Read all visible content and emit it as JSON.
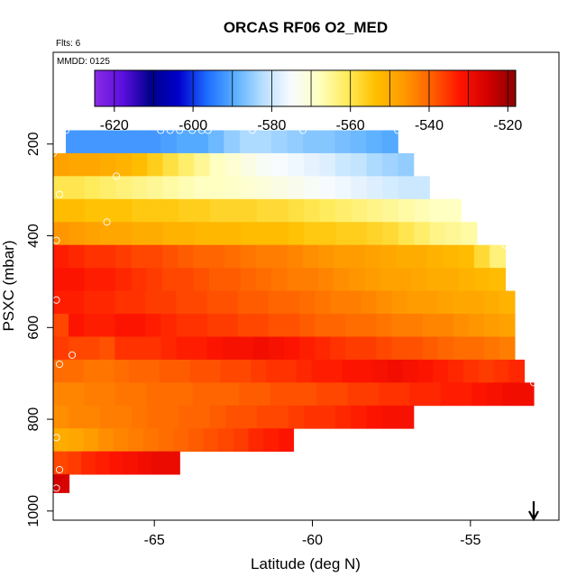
{
  "chart_data": {
    "type": "heatmap",
    "title": "ORCAS RF06 O2_MED",
    "subtitle": "Flts: 6",
    "annotation": "MMDD: 0125",
    "xlabel": "Latitude (deg N)",
    "ylabel": "PSXC (mbar)",
    "xlim": [
      -68.2,
      -52.2
    ],
    "ylim": [
      1020,
      0
    ],
    "x_ticks": [
      -65,
      -60,
      -55
    ],
    "x_tick_labels": [
      "-65",
      "-60",
      "-55"
    ],
    "y_ticks": [
      200,
      400,
      600,
      800,
      1000
    ],
    "y_tick_labels": [
      "200",
      "400",
      "600",
      "800",
      "1000"
    ],
    "colorbar": {
      "min": -625,
      "max": -518,
      "ticks": [
        -620,
        -600,
        -580,
        -560,
        -540,
        -520
      ],
      "tick_labels": [
        "-620",
        "-600",
        "-580",
        "-560",
        "-540",
        "-520"
      ],
      "colors": [
        "#8a2be2",
        "#5b0fe0",
        "#00008b",
        "#0000cd",
        "#1e6cff",
        "#5ab0ff",
        "#b8dfff",
        "#f7fbff",
        "#ffffc0",
        "#ffeb5a",
        "#ffc000",
        "#ff9a00",
        "#ff6000",
        "#ff1500",
        "#d30000",
        "#8b0000"
      ]
    },
    "bin_width_deg": 0.5,
    "rows": [
      {
        "p0": 170,
        "p1": 220,
        "x0": -67.8,
        "x1": -57.3,
        "values": [
          -592,
          -592,
          -592,
          -592,
          -592,
          -592,
          -591,
          -590,
          -590,
          -588,
          -585,
          -583,
          -583,
          -584,
          -585,
          -586,
          -586,
          -587,
          -588,
          -589,
          -590
        ]
      },
      {
        "p0": 220,
        "p1": 270,
        "x0": -68.2,
        "x1": -56.8,
        "values": [
          -548,
          -549,
          -549,
          -550,
          -551,
          -553,
          -556,
          -559,
          -562,
          -565,
          -568,
          -570,
          -572,
          -574,
          -575,
          -576,
          -577,
          -578,
          -580,
          -581,
          -583,
          -584,
          -585
        ]
      },
      {
        "p0": 270,
        "p1": 320,
        "x0": -68.2,
        "x1": -56.3,
        "values": [
          -560,
          -560,
          -561,
          -562,
          -563,
          -564,
          -565,
          -566,
          -567,
          -568,
          -568,
          -569,
          -570,
          -571,
          -572,
          -573,
          -574,
          -575,
          -576,
          -577,
          -578,
          -579,
          -580,
          -580
        ]
      },
      {
        "p0": 320,
        "p1": 370,
        "x0": -68.2,
        "x1": -55.3,
        "values": [
          -553,
          -553,
          -554,
          -554,
          -554,
          -555,
          -555,
          -555,
          -556,
          -556,
          -557,
          -557,
          -557,
          -558,
          -558,
          -559,
          -560,
          -561,
          -562,
          -563,
          -564,
          -565,
          -566,
          -567,
          -568,
          -568
        ]
      },
      {
        "p0": 370,
        "p1": 420,
        "x0": -68.2,
        "x1": -54.8,
        "values": [
          -546,
          -547,
          -548,
          -549,
          -549,
          -550,
          -550,
          -551,
          -551,
          -552,
          -552,
          -552,
          -553,
          -553,
          -553,
          -554,
          -555,
          -555,
          -556,
          -556,
          -557,
          -558,
          -560,
          -562,
          -564,
          -565,
          -566
        ]
      },
      {
        "p0": 420,
        "p1": 470,
        "x0": -68.2,
        "x1": -53.9,
        "values": [
          -533,
          -534,
          -535,
          -535,
          -536,
          -537,
          -537,
          -538,
          -539,
          -540,
          -540,
          -541,
          -542,
          -543,
          -543,
          -544,
          -545,
          -546,
          -547,
          -547,
          -548,
          -549,
          -550,
          -550,
          -551,
          -552,
          -553,
          -558,
          -563
        ]
      },
      {
        "p0": 470,
        "p1": 520,
        "x0": -68.2,
        "x1": -53.9,
        "values": [
          -532,
          -532,
          -533,
          -533,
          -534,
          -535,
          -536,
          -537,
          -537,
          -538,
          -539,
          -539,
          -540,
          -541,
          -542,
          -543,
          -543,
          -544,
          -545,
          -546,
          -547,
          -548,
          -548,
          -549,
          -550,
          -550,
          -551,
          -552,
          -553
        ]
      },
      {
        "p0": 520,
        "p1": 570,
        "x0": -68.2,
        "x1": -53.6,
        "values": [
          -533,
          -533,
          -534,
          -534,
          -535,
          -535,
          -536,
          -536,
          -537,
          -537,
          -538,
          -538,
          -539,
          -539,
          -540,
          -540,
          -541,
          -542,
          -543,
          -543,
          -544,
          -545,
          -546,
          -547,
          -547,
          -548,
          -549,
          -549,
          -550,
          -551
        ]
      },
      {
        "p0": 570,
        "p1": 620,
        "x0": -68.2,
        "x1": -53.6,
        "values": [
          -537,
          -532,
          -533,
          -533,
          -532,
          -532,
          -533,
          -534,
          -535,
          -535,
          -536,
          -536,
          -537,
          -537,
          -538,
          -538,
          -539,
          -540,
          -540,
          -541,
          -541,
          -542,
          -543,
          -543,
          -544,
          -544,
          -545,
          -546,
          -547,
          -548
        ]
      },
      {
        "p0": 620,
        "p1": 670,
        "x0": -68.2,
        "x1": -53.6,
        "values": [
          -536,
          -537,
          -537,
          -538,
          -535,
          -535,
          -535,
          -534,
          -533,
          -533,
          -532,
          -531,
          -531,
          -530,
          -531,
          -532,
          -533,
          -534,
          -535,
          -536,
          -536,
          -537,
          -538,
          -538,
          -539,
          -540,
          -541,
          -541,
          -542,
          -543
        ]
      },
      {
        "p0": 670,
        "p1": 720,
        "x0": -68.2,
        "x1": -53.3,
        "values": [
          -541,
          -541,
          -542,
          -542,
          -541,
          -540,
          -540,
          -539,
          -539,
          -538,
          -538,
          -537,
          -537,
          -536,
          -535,
          -535,
          -534,
          -533,
          -533,
          -532,
          -532,
          -531,
          -530,
          -531,
          -532,
          -533,
          -534,
          -535,
          -536,
          -535,
          -534
        ]
      },
      {
        "p0": 720,
        "p1": 770,
        "x0": -68.2,
        "x1": -53.0,
        "values": [
          -544,
          -544,
          -543,
          -543,
          -542,
          -542,
          -541,
          -541,
          -541,
          -540,
          -540,
          -540,
          -539,
          -539,
          -538,
          -538,
          -538,
          -537,
          -537,
          -536,
          -536,
          -535,
          -535,
          -534,
          -534,
          -533,
          -533,
          -532,
          -531,
          -530,
          -530
        ]
      },
      {
        "p0": 770,
        "p1": 820,
        "x0": -68.2,
        "x1": -56.8,
        "values": [
          -545,
          -544,
          -544,
          -543,
          -543,
          -542,
          -541,
          -541,
          -540,
          -540,
          -539,
          -538,
          -538,
          -537,
          -537,
          -536,
          -535,
          -535,
          -534,
          -533,
          -532,
          -531,
          -531
        ]
      },
      {
        "p0": 820,
        "p1": 870,
        "x0": -68.2,
        "x1": -60.6,
        "values": [
          -550,
          -549,
          -547,
          -545,
          -544,
          -543,
          -542,
          -541,
          -540,
          -539,
          -538,
          -537,
          -536,
          -534,
          -533,
          -532
        ]
      },
      {
        "p0": 870,
        "p1": 920,
        "x0": -68.2,
        "x1": -64.2,
        "values": [
          -537,
          -536,
          -534,
          -533,
          -532,
          -531,
          -530,
          -529,
          -529
        ]
      },
      {
        "p0": 920,
        "p1": 960,
        "x0": -68.2,
        "x1": -67.7,
        "values": [
          -525,
          -526
        ]
      }
    ],
    "flight_points": [
      {
        "lat": -67.8,
        "p": 170
      },
      {
        "lat": -64.8,
        "p": 170
      },
      {
        "lat": -64.5,
        "p": 170
      },
      {
        "lat": -64.2,
        "p": 170
      },
      {
        "lat": -63.8,
        "p": 170
      },
      {
        "lat": -63.5,
        "p": 170
      },
      {
        "lat": -63.3,
        "p": 170
      },
      {
        "lat": -61.9,
        "p": 170
      },
      {
        "lat": -60.3,
        "p": 170
      },
      {
        "lat": -57.3,
        "p": 170
      },
      {
        "lat": -68.2,
        "p": 220
      },
      {
        "lat": -66.2,
        "p": 270
      },
      {
        "lat": -68.0,
        "p": 310
      },
      {
        "lat": -66.5,
        "p": 370
      },
      {
        "lat": -68.1,
        "p": 410
      },
      {
        "lat": -53.9,
        "p": 420
      },
      {
        "lat": -68.1,
        "p": 540
      },
      {
        "lat": -67.6,
        "p": 660
      },
      {
        "lat": -68.0,
        "p": 680
      },
      {
        "lat": -53.0,
        "p": 720
      },
      {
        "lat": -68.1,
        "p": 840
      },
      {
        "lat": -68.0,
        "p": 910
      },
      {
        "lat": -68.1,
        "p": 950
      }
    ],
    "arrow_marker": {
      "lat": -53.0,
      "direction": "down"
    }
  }
}
